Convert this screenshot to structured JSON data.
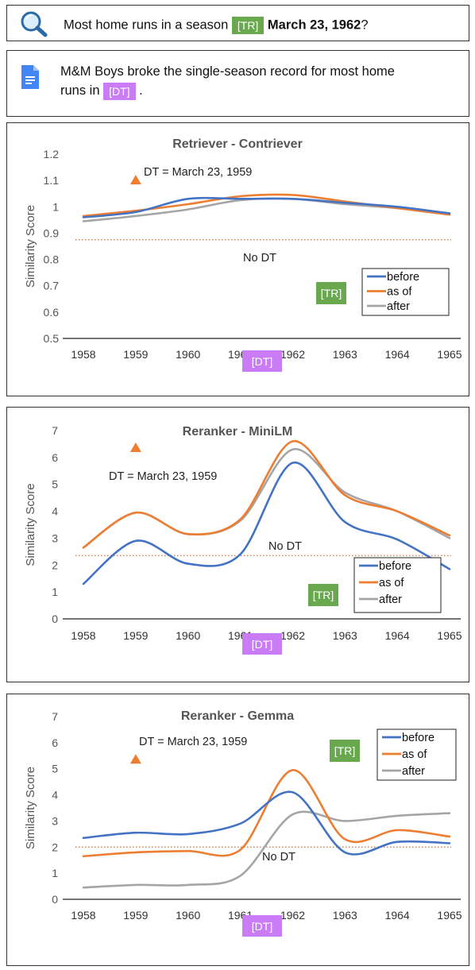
{
  "query": {
    "text_before": "Most home runs in a season",
    "tr_tag": "[TR]",
    "date_text": "March 23, 1962",
    "text_after": "?"
  },
  "document": {
    "text_line1": "M&M Boys broke the single-season record for most home",
    "text_line2": "runs in",
    "dt_tag": "[DT]",
    "text_end": "."
  },
  "colors": {
    "before": "#4472c4",
    "as_of": "#ed7d31",
    "after": "#a5a5a5",
    "tr_tag": "#6aa84f",
    "dt_tag": "#c97cf5",
    "marker": "#ed7d31"
  },
  "chart_data": [
    {
      "type": "line",
      "title": "Retriever - Contriever",
      "ylabel": "Similarity Score",
      "x": [
        1958,
        1959,
        1960,
        1961,
        1962,
        1963,
        1964,
        1965
      ],
      "ylim": [
        0.5,
        1.2
      ],
      "yticks": [
        0.5,
        0.6,
        0.7,
        0.8,
        0.9,
        1,
        1.1,
        1.2
      ],
      "series": [
        {
          "name": "before",
          "values": [
            0.96,
            0.98,
            1.03,
            1.03,
            1.03,
            1.015,
            1.0,
            0.975
          ]
        },
        {
          "name": "as of",
          "values": [
            0.965,
            0.985,
            1.01,
            1.04,
            1.045,
            1.02,
            0.995,
            0.97
          ]
        },
        {
          "name": "after",
          "values": [
            0.945,
            0.965,
            0.99,
            1.025,
            1.03,
            1.01,
            0.995,
            0.975
          ]
        }
      ],
      "no_dt_value": 0.875,
      "no_dt_label": "No DT",
      "marker": {
        "x": 1959,
        "y": 1.1,
        "label": "DT = March 23, 1959"
      },
      "tr_label": "[TR]",
      "dt_label": "[DT]",
      "legend": "right"
    },
    {
      "type": "line",
      "title": "Reranker - MiniLM",
      "ylabel": "Similarity Score",
      "x": [
        1958,
        1959,
        1960,
        1961,
        1962,
        1963,
        1964,
        1965
      ],
      "ylim": [
        0,
        7
      ],
      "yticks": [
        0,
        1,
        2,
        3,
        4,
        5,
        6,
        7
      ],
      "series": [
        {
          "name": "before",
          "values": [
            1.3,
            2.9,
            2.05,
            2.4,
            5.8,
            3.6,
            2.95,
            1.85
          ]
        },
        {
          "name": "as of",
          "values": [
            2.65,
            3.95,
            3.15,
            3.7,
            6.6,
            4.6,
            4.0,
            3.1
          ]
        },
        {
          "name": "after",
          "values": [
            2.65,
            3.95,
            3.15,
            3.65,
            6.3,
            4.7,
            4.0,
            3.0
          ]
        }
      ],
      "no_dt_value": 2.35,
      "no_dt_label": "No DT",
      "marker": {
        "x": 1959,
        "y": 6.35,
        "label": "DT = March 23, 1959"
      },
      "tr_label": "[TR]",
      "dt_label": "[DT]",
      "legend": "bottom-right"
    },
    {
      "type": "line",
      "title": "Reranker - Gemma",
      "ylabel": "Similarity Score",
      "x": [
        1958,
        1959,
        1960,
        1961,
        1962,
        1963,
        1964,
        1965
      ],
      "ylim": [
        0,
        7
      ],
      "yticks": [
        0,
        1,
        2,
        3,
        4,
        5,
        6,
        7
      ],
      "series": [
        {
          "name": "before",
          "values": [
            2.35,
            2.55,
            2.5,
            2.9,
            4.1,
            1.8,
            2.2,
            2.15
          ]
        },
        {
          "name": "as of",
          "values": [
            1.65,
            1.8,
            1.85,
            1.9,
            4.95,
            2.3,
            2.65,
            2.4
          ]
        },
        {
          "name": "after",
          "values": [
            0.45,
            0.55,
            0.55,
            0.9,
            3.25,
            3.0,
            3.2,
            3.3
          ]
        }
      ],
      "no_dt_value": 2.0,
      "no_dt_label": "No DT",
      "marker": {
        "x": 1959,
        "y": 5.35,
        "label": "DT = March 23, 1959"
      },
      "tr_label": "[TR]",
      "dt_label": "[DT]",
      "legend": "top-right"
    }
  ]
}
